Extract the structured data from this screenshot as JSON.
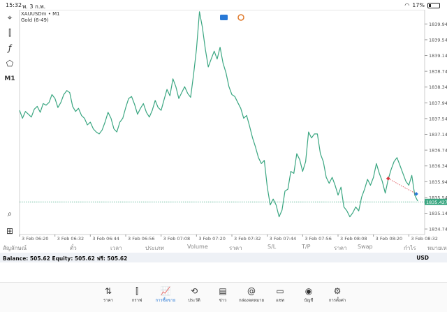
{
  "status_bar": {
    "time": "15:32",
    "date": "พ. 3 ก.พ.",
    "battery": "17%"
  },
  "symbol": {
    "name": "XAUUSDm • M1",
    "description": "Gold (6-49)"
  },
  "left_tools": {
    "timeframe": "M1"
  },
  "chart_data": {
    "type": "line",
    "color": "#3aa681",
    "ylim": [
      1834.6,
      1840.3
    ],
    "y_ticks": [
      1839.94,
      1839.54,
      1839.14,
      1838.74,
      1838.34,
      1837.94,
      1837.54,
      1837.14,
      1836.74,
      1836.34,
      1835.94,
      1835.54,
      1835.14,
      1834.74
    ],
    "y_tick_labels": [
      "1839.940",
      "1839.540",
      "1839.140",
      "1838.740",
      "1838.340",
      "1837.940",
      "1837.540",
      "1837.140",
      "1836.740",
      "1836.340",
      "1835.940",
      "1835.540",
      "1835.140",
      "1834.740"
    ],
    "x_tick_labels": [
      "3 Feb 06:20",
      "3 Feb 06:32",
      "3 Feb 06:44",
      "3 Feb 06:56",
      "3 Feb 07:08",
      "3 Feb 07:20",
      "3 Feb 07:32",
      "3 Feb 07:44",
      "3 Feb 07:56",
      "3 Feb 08:08",
      "3 Feb 08:20",
      "3 Feb 08:32"
    ],
    "x_tick_index": [
      0,
      12,
      24,
      36,
      48,
      60,
      72,
      84,
      96,
      108,
      120,
      132
    ],
    "current_price": 1835.427,
    "current_price_label": "1835.427",
    "values": [
      1837.75,
      1837.55,
      1837.72,
      1837.65,
      1837.58,
      1837.78,
      1837.85,
      1837.7,
      1837.92,
      1837.88,
      1837.95,
      1838.15,
      1838.05,
      1837.82,
      1837.95,
      1838.15,
      1838.25,
      1838.2,
      1837.85,
      1837.72,
      1837.8,
      1837.62,
      1837.55,
      1837.38,
      1837.45,
      1837.28,
      1837.2,
      1837.15,
      1837.25,
      1837.45,
      1837.7,
      1837.55,
      1837.28,
      1837.2,
      1837.45,
      1837.55,
      1837.82,
      1838.05,
      1838.1,
      1837.9,
      1837.65,
      1837.8,
      1837.92,
      1837.7,
      1837.58,
      1837.75,
      1838.0,
      1837.82,
      1837.75,
      1838.02,
      1838.28,
      1838.12,
      1838.55,
      1838.35,
      1838.05,
      1838.2,
      1838.35,
      1838.18,
      1838.08,
      1838.65,
      1839.3,
      1840.25,
      1839.85,
      1839.3,
      1838.85,
      1839.05,
      1839.25,
      1839.05,
      1839.35,
      1838.95,
      1838.7,
      1838.35,
      1838.15,
      1838.1,
      1837.95,
      1837.8,
      1837.55,
      1837.62,
      1837.35,
      1837.05,
      1836.82,
      1836.55,
      1836.4,
      1836.48,
      1835.8,
      1835.35,
      1835.5,
      1835.35,
      1835.05,
      1835.22,
      1835.7,
      1835.75,
      1836.2,
      1836.15,
      1836.65,
      1836.5,
      1836.2,
      1836.45,
      1837.2,
      1837.05,
      1837.15,
      1837.15,
      1836.65,
      1836.45,
      1836.05,
      1835.9,
      1836.05,
      1835.85,
      1835.6,
      1835.8,
      1835.3,
      1835.2,
      1835.05,
      1835.15,
      1835.3,
      1835.2,
      1835.55,
      1835.75,
      1836.0,
      1835.85,
      1836.05,
      1836.4,
      1836.15,
      1835.95,
      1835.65,
      1836.0,
      1836.25,
      1836.45,
      1836.55,
      1836.35,
      1836.15,
      1835.95,
      1835.85,
      1836.1,
      1835.6,
      1835.45
    ]
  },
  "trade_marker": {
    "color_open": "#d9363e",
    "color_close": "#2979d6"
  },
  "table_headers": [
    "สัญลักษณ์",
    "ตั๋ว",
    "เวลา",
    "ประเภท",
    "Volume",
    "ราคา",
    "S/L",
    "T/P",
    "ราคา",
    "Swap",
    "กำไร",
    "หมายเหตุ"
  ],
  "balance": {
    "text": "Balance: 505.62 Equity: 505.62 ฟรี: 505.62",
    "currency": "USD"
  },
  "nav": [
    {
      "label": "ราคา",
      "icon": "arrows-updown-icon",
      "glyph": "⇅"
    },
    {
      "label": "กราฟ",
      "icon": "candles-icon",
      "glyph": "⫿"
    },
    {
      "label": "การซื้อขาย",
      "icon": "trade-chart-icon",
      "glyph": "📈"
    },
    {
      "label": "ประวัติ",
      "icon": "history-icon",
      "glyph": "⟲"
    },
    {
      "label": "ข่าว",
      "icon": "news-icon",
      "glyph": "▤"
    },
    {
      "label": "กล่องจดหมาย",
      "icon": "mailbox-icon",
      "glyph": "@"
    },
    {
      "label": "แชท",
      "icon": "chat-icon",
      "glyph": "▭"
    },
    {
      "label": "บัญชี",
      "icon": "account-icon",
      "glyph": "◉"
    },
    {
      "label": "การตั้งค่า",
      "icon": "gear-icon",
      "glyph": "⚙"
    }
  ],
  "active_nav_index": 2,
  "accent_color": "#2979d6"
}
